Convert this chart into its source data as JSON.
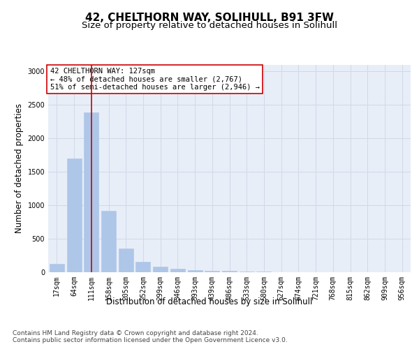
{
  "title": "42, CHELTHORN WAY, SOLIHULL, B91 3FW",
  "subtitle": "Size of property relative to detached houses in Solihull",
  "xlabel": "Distribution of detached houses by size in Solihull",
  "ylabel": "Number of detached properties",
  "categories": [
    "17sqm",
    "64sqm",
    "111sqm",
    "158sqm",
    "205sqm",
    "252sqm",
    "299sqm",
    "346sqm",
    "393sqm",
    "439sqm",
    "486sqm",
    "533sqm",
    "580sqm",
    "627sqm",
    "674sqm",
    "721sqm",
    "768sqm",
    "815sqm",
    "862sqm",
    "909sqm",
    "956sqm"
  ],
  "values": [
    120,
    1700,
    2390,
    920,
    350,
    155,
    80,
    55,
    35,
    20,
    18,
    10,
    8,
    5,
    4,
    3,
    2,
    2,
    1,
    1,
    1
  ],
  "bar_color": "#aec6e8",
  "bar_edge_color": "#aec6e8",
  "highlight_bar_index": 2,
  "highlight_line_color": "#cc0000",
  "annotation_text": "42 CHELTHORN WAY: 127sqm\n← 48% of detached houses are smaller (2,767)\n51% of semi-detached houses are larger (2,946) →",
  "annotation_box_color": "#ffffff",
  "annotation_box_edge_color": "#cc0000",
  "ylim": [
    0,
    3100
  ],
  "yticks": [
    0,
    500,
    1000,
    1500,
    2000,
    2500,
    3000
  ],
  "grid_color": "#d0d8e8",
  "bg_color": "#e8eef8",
  "footer_text": "Contains HM Land Registry data © Crown copyright and database right 2024.\nContains public sector information licensed under the Open Government Licence v3.0.",
  "title_fontsize": 11,
  "subtitle_fontsize": 9.5,
  "ylabel_fontsize": 8.5,
  "xlabel_fontsize": 8.5,
  "tick_fontsize": 7,
  "annotation_fontsize": 7.5,
  "footer_fontsize": 6.5
}
